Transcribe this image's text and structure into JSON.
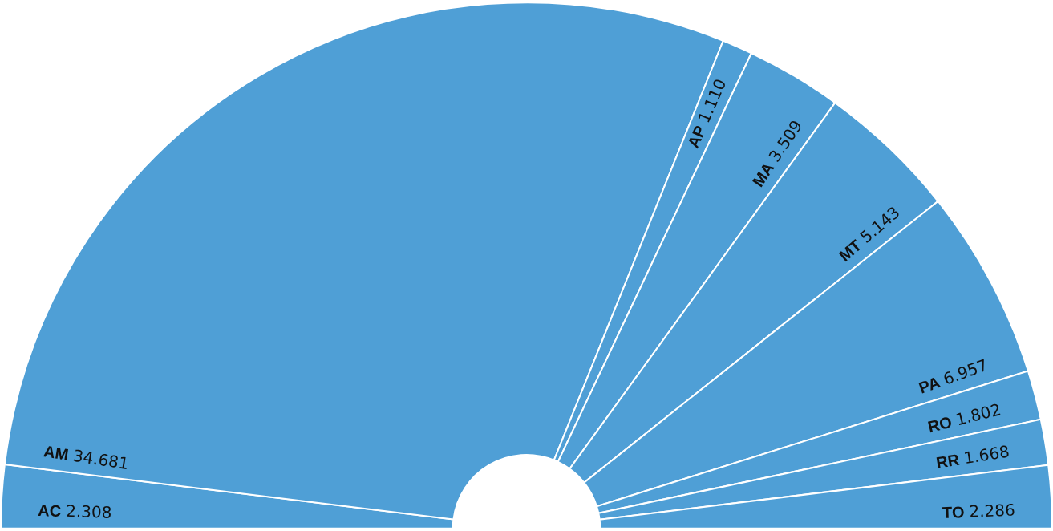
{
  "chart_data": {
    "type": "donut",
    "categories": [
      "AC",
      "AM",
      "AP",
      "MA",
      "MT",
      "PA",
      "RO",
      "RR",
      "TO"
    ],
    "values": [
      2.308,
      34.681,
      1.11,
      3.509,
      5.143,
      6.957,
      1.802,
      1.668,
      2.286
    ],
    "value_labels": [
      "2.308",
      "34.681",
      "1.110",
      "3.509",
      "5.143",
      "6.957",
      "1.802",
      "1.668",
      "2.286"
    ],
    "colors": [
      "#4f9fd6",
      "#4f9fd6",
      "#4f9fd6",
      "#4f9fd6",
      "#4f9fd6",
      "#4f9fd6",
      "#4f9fd6",
      "#4f9fd6",
      "#4f9fd6"
    ],
    "legend": false
  }
}
